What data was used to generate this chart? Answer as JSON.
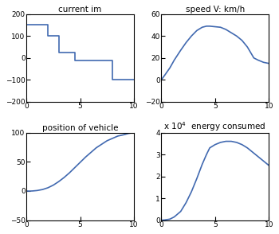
{
  "current_im": {
    "title": "current im",
    "x": [
      0,
      2.0,
      2.0,
      3.0,
      3.0,
      4.5,
      4.5,
      8.0,
      8.0,
      10.0
    ],
    "y": [
      150,
      150,
      100,
      100,
      25,
      25,
      -10,
      -10,
      -100,
      -100
    ],
    "ylim": [
      -200,
      200
    ],
    "xlim": [
      0,
      10
    ],
    "yticks": [
      -200,
      -100,
      0,
      100,
      200
    ],
    "xticks": [
      0,
      5,
      10
    ]
  },
  "speed": {
    "title": "speed V: km/h",
    "x": [
      0,
      0.3,
      0.8,
      1.2,
      1.8,
      2.3,
      2.8,
      3.3,
      3.8,
      4.2,
      4.5,
      5.0,
      5.5,
      6.0,
      6.5,
      7.0,
      7.5,
      8.0,
      8.3,
      8.6,
      9.0,
      9.5,
      10.0
    ],
    "y": [
      0,
      4,
      11,
      18,
      27,
      34,
      40,
      45,
      48,
      49,
      49,
      48.5,
      48,
      46,
      43,
      40,
      36,
      30,
      25,
      20,
      18,
      16,
      15
    ],
    "ylim": [
      -20,
      60
    ],
    "xlim": [
      0,
      10
    ],
    "yticks": [
      -20,
      0,
      20,
      40,
      60
    ],
    "xticks": [
      0,
      5,
      10
    ]
  },
  "position": {
    "title": "position of vehicle",
    "x": [
      0,
      0.3,
      0.6,
      1.0,
      1.5,
      2.0,
      2.5,
      3.0,
      3.5,
      4.0,
      4.5,
      5.0,
      5.5,
      6.0,
      6.5,
      7.0,
      7.5,
      8.0,
      8.5,
      9.0,
      9.5,
      10.0
    ],
    "y": [
      0,
      -0.2,
      0.1,
      0.8,
      2.5,
      5.5,
      10,
      16,
      23,
      31,
      40,
      49,
      58,
      66,
      74,
      80,
      86,
      90,
      94,
      96,
      98.5,
      100
    ],
    "ylim": [
      -50,
      100
    ],
    "xlim": [
      0,
      10
    ],
    "yticks": [
      -50,
      0,
      50,
      100
    ],
    "xticks": [
      0,
      5,
      10
    ]
  },
  "energy": {
    "title": "energy consumed",
    "x": [
      0,
      0.3,
      0.8,
      1.2,
      1.8,
      2.3,
      2.8,
      3.3,
      3.8,
      4.2,
      4.5,
      5.0,
      5.5,
      6.0,
      6.5,
      7.0,
      7.5,
      8.0,
      8.5,
      9.0,
      9.5,
      10.0
    ],
    "y": [
      0,
      100,
      500,
      1500,
      4000,
      8000,
      13000,
      19000,
      25500,
      30000,
      33000,
      34500,
      35500,
      36000,
      36000,
      35500,
      34500,
      33000,
      31000,
      29000,
      27000,
      25000
    ],
    "ylim": [
      0,
      4
    ],
    "xlim": [
      0,
      10
    ],
    "yticks": [
      0,
      1,
      2,
      3,
      4
    ],
    "xticks": [
      0,
      5,
      10
    ],
    "scale_label": "x 10$^4$"
  },
  "line_color": "#4169b0",
  "bg_color": "#ffffff",
  "font_size": 7.5
}
